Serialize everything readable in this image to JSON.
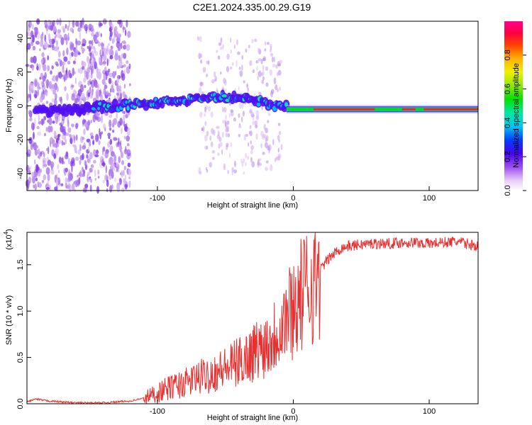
{
  "title": "C2E1.2024.335.00.29.G19",
  "chart_data": [
    {
      "type": "heatmap",
      "xlabel": "Height of straight line (km)",
      "ylabel": "Frequency (Hz)",
      "xlim": [
        -196,
        136
      ],
      "ylim": [
        -50,
        50
      ],
      "xticks": [
        -100,
        0,
        100
      ],
      "yticks": [
        -40,
        -20,
        0,
        20,
        40
      ],
      "colorbar": {
        "label": "Normalized spectral amplitude",
        "range": [
          0,
          1
        ],
        "ticks": [
          "0.0",
          "0.2",
          "0.4",
          "0.6",
          "0.8"
        ]
      }
    },
    {
      "type": "line",
      "xlabel": "Height of straight line (km)",
      "ylabel": "SNR (10 * v/v)",
      "multiplier": "(x10",
      "multiplier_exp": "4",
      "multiplier_close": ")",
      "xlim": [
        -196,
        136
      ],
      "ylim": [
        0,
        1.85
      ],
      "xticks": [
        -100,
        0,
        100
      ],
      "yticks": [
        "0.0",
        "0.5",
        "1.0",
        "1.5"
      ],
      "color": "#e83030",
      "series": [
        {
          "x": [
            -196,
            -190,
            -180,
            -170,
            -160,
            -150,
            -140,
            -130,
            -120,
            -110,
            -100,
            -90,
            -80,
            -70,
            -60,
            -50,
            -40,
            -30,
            -25,
            -20,
            -15,
            -10,
            -5,
            0,
            5,
            10,
            15,
            20,
            25,
            30,
            35,
            40,
            50,
            60,
            70,
            80,
            90,
            100,
            110,
            120,
            130,
            136
          ],
          "y": [
            0.02,
            0.05,
            0.03,
            0.02,
            0.01,
            0.01,
            0.01,
            0.02,
            0.03,
            0.06,
            0.12,
            0.18,
            0.22,
            0.28,
            0.33,
            0.38,
            0.45,
            0.55,
            0.6,
            0.65,
            0.72,
            0.85,
            0.95,
            1.05,
            1.15,
            1.25,
            1.35,
            1.45,
            1.55,
            1.62,
            1.68,
            1.7,
            1.72,
            1.73,
            1.73,
            1.74,
            1.74,
            1.73,
            1.74,
            1.75,
            1.72,
            1.7
          ]
        }
      ]
    }
  ]
}
